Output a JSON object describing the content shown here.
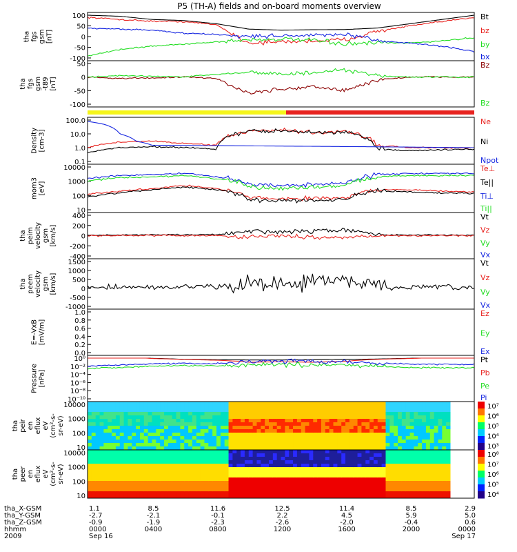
{
  "title": "P5 (TH-A) fields and on-board moments overview",
  "colors": {
    "black": "#000000",
    "red": "#e8231f",
    "green": "#22dd22",
    "blue": "#1525e0",
    "darkred": "#8b0000",
    "yellow": "#f5f51a"
  },
  "panels": [
    {
      "id": "fgs",
      "ylabel": [
        "tha",
        "fgs",
        "gsm",
        "[nT]"
      ],
      "ticks": [
        "100",
        "50",
        "0",
        "-50",
        "-100"
      ],
      "legend": [
        {
          "text": "Bt",
          "color": "black"
        },
        {
          "text": "bz",
          "color": "red"
        },
        {
          "text": "by",
          "color": "green"
        },
        {
          "text": "bx",
          "color": "blue"
        }
      ]
    },
    {
      "id": "fgs_angles",
      "ylabel": [
        "tha",
        "fgs",
        "gsm",
        "-t89",
        "[nT]"
      ],
      "ticks": [
        "50",
        "0",
        "-50",
        "-100"
      ],
      "legend": [
        {
          "text": "Bz",
          "color": "darkred"
        },
        {
          "text": "Bz",
          "color": "green"
        }
      ]
    },
    {
      "id": "density",
      "ylabel": [
        "Density",
        "[cm-3]"
      ],
      "ticks": [
        "100.0",
        "10.0",
        "1.0",
        "0.1"
      ],
      "legend": [
        {
          "text": "Ne",
          "color": "red"
        },
        {
          "text": "Ni",
          "color": "black"
        },
        {
          "text": "Npot",
          "color": "blue"
        }
      ]
    },
    {
      "id": "temperature",
      "ylabel": [
        "mom3",
        "[eV]"
      ],
      "ticks": [
        "10000",
        "1000",
        "100",
        "10"
      ],
      "legend": [
        {
          "text": "Te⊥",
          "color": "red"
        },
        {
          "text": "Te||",
          "color": "black"
        },
        {
          "text": "Ti⊥",
          "color": "blue"
        },
        {
          "text": "Ti||",
          "color": "green"
        }
      ]
    },
    {
      "id": "ion_velocity",
      "ylabel": [
        "tha",
        "peim",
        "velocity",
        "gsm",
        "[km/s]"
      ],
      "ticks": [
        "400",
        "200",
        "0",
        "-200",
        "-400"
      ],
      "legend": [
        {
          "text": "Vt",
          "color": "black"
        },
        {
          "text": "Vz",
          "color": "red"
        },
        {
          "text": "Vy",
          "color": "green"
        },
        {
          "text": "Vx",
          "color": "blue"
        }
      ]
    },
    {
      "id": "electron_velocity",
      "ylabel": [
        "tha",
        "peem",
        "velocity",
        "gsm",
        "[km/s]"
      ],
      "ticks": [
        "1500",
        "1000",
        "500",
        "0",
        "-500",
        "-1000"
      ],
      "legend": [
        {
          "text": "Vt",
          "color": "black"
        },
        {
          "text": "Vz",
          "color": "red"
        },
        {
          "text": "Vy",
          "color": "green"
        },
        {
          "text": "Vx",
          "color": "blue"
        }
      ]
    },
    {
      "id": "efield",
      "ylabel": [
        "E=-VxB",
        "[mV/m]"
      ],
      "ticks": [
        "1.0",
        "0.8",
        "0.6",
        "0.4",
        "0.2",
        "0.0"
      ],
      "legend": [
        {
          "text": "Ez",
          "color": "red"
        },
        {
          "text": "Ey",
          "color": "green"
        },
        {
          "text": "Ex",
          "color": "blue"
        }
      ]
    },
    {
      "id": "pressure",
      "ylabel": [
        "Pressure",
        "[nPa]"
      ],
      "ticks": [
        "10⁰",
        "10⁻²",
        "10⁻⁴",
        "10⁻⁶",
        "10⁻⁸",
        "10⁻¹⁰"
      ],
      "legend": [
        {
          "text": "Pt",
          "color": "black"
        },
        {
          "text": "Pb",
          "color": "red"
        },
        {
          "text": "Pe",
          "color": "green"
        },
        {
          "text": "Pi",
          "color": "blue"
        }
      ]
    },
    {
      "id": "ion_spec",
      "ylabel": [
        "tha",
        "peir",
        "en",
        "eflux",
        "eV",
        "(cm²-s-",
        "sr-eV)"
      ],
      "ticks": [
        "10000",
        "1000",
        "100",
        "10"
      ],
      "colorbar": [
        "10⁷",
        "10⁶",
        "10⁵",
        "10⁴",
        "10³"
      ]
    },
    {
      "id": "electron_spec",
      "ylabel": [
        "tha",
        "peer",
        "en",
        "eflux",
        "eV",
        "(cm²-s-",
        "sr-eV)"
      ],
      "ticks": [
        "10000",
        "1000",
        "100",
        "10"
      ],
      "colorbar": [
        "10⁸",
        "10⁷",
        "10⁶",
        "10⁵",
        "10⁴"
      ]
    }
  ],
  "footer": {
    "row_labels": [
      "tha_X-GSM",
      "tha_Y-GSM",
      "tha_Z-GSM",
      "hhmm",
      "2009"
    ],
    "columns": [
      {
        "values": [
          "1.1",
          "-2.7",
          "-0.9",
          "0000",
          "Sep 16"
        ]
      },
      {
        "values": [
          "8.5",
          "-2.1",
          "-1.9",
          "0400",
          ""
        ]
      },
      {
        "values": [
          "11.6",
          "-0.1",
          "-2.3",
          "0800",
          ""
        ]
      },
      {
        "values": [
          "12.5",
          "2.2",
          "-2.6",
          "1200",
          ""
        ]
      },
      {
        "values": [
          "11.4",
          "4.5",
          "-2.0",
          "1600",
          ""
        ]
      },
      {
        "values": [
          "8.5",
          "5.9",
          "-0.4",
          "2000",
          ""
        ]
      },
      {
        "values": [
          "2.9",
          "5.0",
          "0.6",
          "0000",
          "Sep 17"
        ]
      }
    ]
  },
  "chart_data": {
    "type": "line",
    "title": "P5 (TH-A) fields and on-board moments overview",
    "x_axis": {
      "label": "hhmm",
      "ticks": [
        "0000",
        "0400",
        "0800",
        "1200",
        "1600",
        "2000",
        "0000"
      ],
      "range_hours": [
        0,
        24
      ]
    },
    "series": [
      {
        "panel": "fgs",
        "name": "Bt",
        "x": [
          0,
          2,
          4,
          6,
          8,
          10,
          12,
          14,
          16,
          18,
          20,
          22,
          24
        ],
        "y": [
          100,
          95,
          80,
          75,
          60,
          35,
          30,
          32,
          33,
          40,
          60,
          80,
          100
        ]
      },
      {
        "panel": "fgs",
        "name": "bz",
        "x": [
          0,
          2,
          4,
          6,
          8,
          10,
          12,
          14,
          16,
          18,
          20,
          22,
          24
        ],
        "y": [
          90,
          80,
          72,
          70,
          55,
          -30,
          -25,
          -20,
          -15,
          25,
          50,
          70,
          90
        ]
      },
      {
        "panel": "fgs",
        "name": "by",
        "x": [
          0,
          2,
          4,
          6,
          8,
          10,
          12,
          14,
          16,
          18,
          20,
          22,
          24
        ],
        "y": [
          -90,
          -60,
          -45,
          -35,
          -25,
          -15,
          -12,
          -18,
          -35,
          -30,
          -30,
          -20,
          -5
        ]
      },
      {
        "panel": "fgs",
        "name": "bx",
        "x": [
          0,
          2,
          4,
          6,
          8,
          10,
          12,
          14,
          16,
          18,
          20,
          22,
          24
        ],
        "y": [
          40,
          35,
          30,
          15,
          10,
          0,
          5,
          5,
          10,
          -20,
          -30,
          -45,
          -70
        ]
      },
      {
        "panel": "fgs_angles",
        "name": "Bz (dark red)",
        "x": [
          0,
          2,
          4,
          6,
          8,
          10,
          12,
          14,
          16,
          18,
          20,
          22,
          24
        ],
        "y": [
          0,
          -5,
          -3,
          0,
          -5,
          -60,
          -45,
          -35,
          -50,
          -10,
          0,
          0,
          0
        ]
      },
      {
        "panel": "fgs_angles",
        "name": "Bz (green)",
        "x": [
          0,
          2,
          4,
          6,
          8,
          10,
          12,
          14,
          16,
          18,
          20,
          22,
          24
        ],
        "y": [
          0,
          5,
          3,
          0,
          10,
          20,
          10,
          15,
          25,
          5,
          0,
          0,
          0
        ]
      },
      {
        "panel": "density",
        "name": "Ne",
        "x": [
          0,
          2,
          4,
          6,
          8,
          10,
          12,
          14,
          16,
          18,
          20,
          22,
          24
        ],
        "y": [
          1.0,
          2.5,
          3.0,
          2.0,
          1.5,
          15,
          18,
          12,
          14,
          1.5,
          1.0,
          1.0,
          1.0
        ]
      },
      {
        "panel": "density",
        "name": "Ni",
        "x": [
          0,
          2,
          4,
          6,
          8,
          10,
          12,
          14,
          16,
          18,
          20,
          22,
          24
        ],
        "y": [
          0.4,
          1.0,
          1.2,
          1.0,
          0.8,
          15,
          17,
          12,
          13,
          0.8,
          0.6,
          0.7,
          0.8
        ]
      },
      {
        "panel": "density",
        "name": "Npot",
        "x": [
          0,
          1,
          2,
          3,
          4,
          24
        ],
        "y": [
          80,
          50,
          10,
          3,
          1.5,
          1.0
        ]
      },
      {
        "panel": "temperature",
        "name": "Ti⊥",
        "x": [
          0,
          2,
          4,
          6,
          8,
          10,
          12,
          14,
          16,
          18,
          20,
          22,
          24
        ],
        "y": [
          1500,
          2500,
          3000,
          3500,
          2000,
          600,
          500,
          600,
          700,
          3000,
          3500,
          3500,
          3500
        ]
      },
      {
        "panel": "temperature",
        "name": "Ti||",
        "x": [
          0,
          2,
          4,
          6,
          8,
          10,
          12,
          14,
          16,
          18,
          20,
          22,
          24
        ],
        "y": [
          1000,
          1800,
          2000,
          2500,
          1500,
          400,
          300,
          400,
          500,
          2000,
          2500,
          2500,
          2500
        ]
      },
      {
        "panel": "temperature",
        "name": "Te⊥",
        "x": [
          0,
          2,
          4,
          6,
          8,
          10,
          12,
          14,
          16,
          18,
          20,
          22,
          24
        ],
        "y": [
          120,
          200,
          300,
          500,
          300,
          70,
          60,
          65,
          70,
          250,
          250,
          200,
          180
        ]
      },
      {
        "panel": "temperature",
        "name": "Te||",
        "x": [
          0,
          2,
          4,
          6,
          8,
          10,
          12,
          14,
          16,
          18,
          20,
          22,
          24
        ],
        "y": [
          80,
          150,
          250,
          400,
          250,
          50,
          45,
          50,
          55,
          200,
          180,
          150,
          140
        ]
      },
      {
        "panel": "ion_velocity",
        "name": "Vt",
        "x": [
          0,
          4,
          8,
          10,
          12,
          14,
          16,
          18,
          20,
          24
        ],
        "y": [
          10,
          15,
          20,
          80,
          70,
          90,
          110,
          20,
          10,
          10
        ]
      },
      {
        "panel": "ion_velocity",
        "name": "Vz",
        "x": [
          0,
          4,
          8,
          10,
          12,
          14,
          16,
          18,
          20,
          24
        ],
        "y": [
          0,
          5,
          0,
          -20,
          -10,
          -25,
          -30,
          0,
          0,
          0
        ]
      },
      {
        "panel": "electron_velocity",
        "name": "Vt",
        "x": [
          0,
          4,
          8,
          10,
          12,
          14,
          16,
          18,
          20,
          24
        ],
        "y": [
          50,
          60,
          100,
          300,
          250,
          350,
          500,
          80,
          60,
          50
        ]
      },
      {
        "panel": "pressure",
        "name": "Pt",
        "x": [
          0,
          2,
          4,
          6,
          8,
          10,
          12,
          14,
          16,
          18,
          20,
          22,
          24
        ],
        "y": [
          5,
          2,
          0.9,
          0.5,
          0.4,
          0.35,
          0.35,
          0.4,
          0.5,
          0.6,
          0.9,
          1.5,
          2.5
        ]
      },
      {
        "panel": "pressure",
        "name": "Pb",
        "x": [
          0,
          2,
          4,
          6,
          8,
          10,
          12,
          14,
          16,
          18,
          20,
          22,
          24
        ],
        "y": [
          4,
          1.8,
          0.8,
          0.45,
          0.3,
          0.1,
          0.12,
          0.1,
          0.15,
          0.5,
          0.8,
          1.3,
          2.2
        ]
      },
      {
        "panel": "pressure",
        "name": "Pe",
        "x": [
          0,
          2,
          4,
          6,
          8,
          10,
          12,
          14,
          16,
          18,
          20,
          22,
          24
        ],
        "y": [
          0.002,
          0.005,
          0.01,
          0.015,
          0.012,
          0.02,
          0.025,
          0.02,
          0.02,
          0.01,
          0.005,
          0.004,
          0.004
        ]
      },
      {
        "panel": "pressure",
        "name": "Pi",
        "x": [
          0,
          2,
          4,
          6,
          8,
          10,
          12,
          14,
          16,
          18,
          20,
          22,
          24
        ],
        "y": [
          0.01,
          0.02,
          0.04,
          0.05,
          0.04,
          0.15,
          0.2,
          0.15,
          0.15,
          0.06,
          0.03,
          0.03,
          0.03
        ]
      }
    ]
  }
}
